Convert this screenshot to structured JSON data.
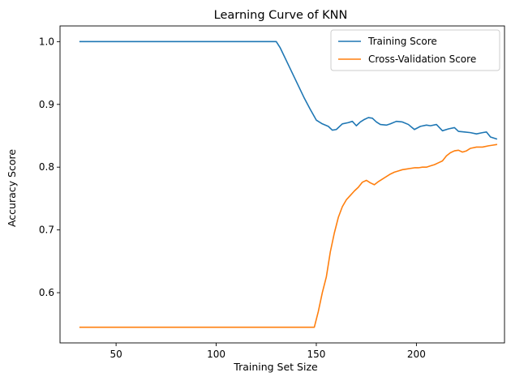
{
  "chart_data": {
    "type": "line",
    "title": "Learning Curve of KNN",
    "xlabel": "Training Set Size",
    "ylabel": "Accuracy Score",
    "xlim": [
      22,
      244
    ],
    "ylim": [
      0.52,
      1.025
    ],
    "xticks": [
      50,
      100,
      150,
      200
    ],
    "yticks": [
      0.6,
      0.7,
      0.8,
      0.9,
      1.0
    ],
    "grid": false,
    "legend": "top-right",
    "series": [
      {
        "name": "Training Score",
        "color": "#1f77b4",
        "x": [
          32,
          130,
          132,
          135,
          138,
          141,
          144,
          147,
          150,
          153,
          156,
          158,
          160,
          163,
          166,
          168,
          170,
          172,
          174,
          176,
          178,
          180,
          182,
          185,
          187,
          190,
          193,
          196,
          199,
          202,
          205,
          207,
          210,
          213,
          216,
          219,
          221,
          224,
          227,
          230,
          233,
          235,
          237,
          240
        ],
        "y": [
          1.0,
          1.0,
          0.99,
          0.97,
          0.95,
          0.93,
          0.91,
          0.892,
          0.875,
          0.869,
          0.865,
          0.859,
          0.86,
          0.869,
          0.871,
          0.873,
          0.866,
          0.872,
          0.876,
          0.879,
          0.878,
          0.872,
          0.868,
          0.867,
          0.869,
          0.873,
          0.872,
          0.868,
          0.86,
          0.865,
          0.867,
          0.866,
          0.868,
          0.858,
          0.861,
          0.863,
          0.857,
          0.856,
          0.855,
          0.853,
          0.855,
          0.856,
          0.848,
          0.845
        ]
      },
      {
        "name": "Cross-Validation Score",
        "color": "#ff7f0e",
        "x": [
          32,
          149,
          151,
          153,
          155,
          157,
          159,
          161,
          163,
          165,
          167,
          169,
          171,
          173,
          175,
          177,
          179,
          181,
          183,
          185,
          187,
          189,
          191,
          193,
          195,
          197,
          199,
          201,
          203,
          205,
          207,
          209,
          211,
          213,
          215,
          217,
          219,
          221,
          223,
          225,
          227,
          230,
          233,
          236,
          238,
          240
        ],
        "y": [
          0.545,
          0.545,
          0.57,
          0.6,
          0.625,
          0.665,
          0.695,
          0.72,
          0.737,
          0.748,
          0.755,
          0.762,
          0.768,
          0.776,
          0.779,
          0.775,
          0.772,
          0.777,
          0.781,
          0.785,
          0.789,
          0.792,
          0.794,
          0.796,
          0.797,
          0.798,
          0.799,
          0.799,
          0.8,
          0.8,
          0.802,
          0.804,
          0.807,
          0.81,
          0.818,
          0.823,
          0.826,
          0.827,
          0.824,
          0.826,
          0.83,
          0.832,
          0.832,
          0.834,
          0.835,
          0.836
        ]
      }
    ]
  }
}
